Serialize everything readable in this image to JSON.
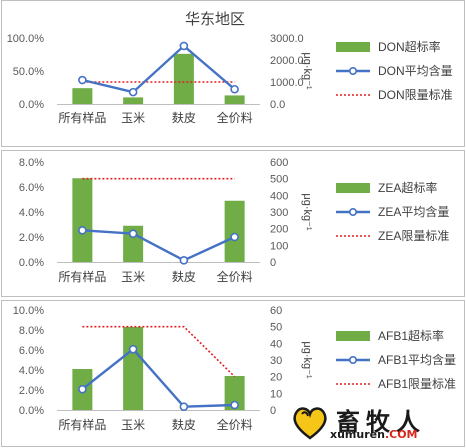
{
  "page_title": "华东地区",
  "chart_data": [
    {
      "type": "bar",
      "title": "华东地区",
      "categories": [
        "所有样品",
        "玉米",
        "麸皮",
        "全价料"
      ],
      "left_axis": {
        "ticks": [
          "0.0%",
          "50.0%",
          "100.0%"
        ],
        "ylim": [
          0,
          100
        ]
      },
      "right_axis": {
        "ticks": [
          "0.0",
          "1000.0",
          "2000.0",
          "3000.0"
        ],
        "ylim": [
          0,
          3000
        ],
        "label": "μg·kg⁻¹"
      },
      "series": [
        {
          "name": "DON超标率",
          "kind": "bar",
          "axis": "left",
          "values": [
            24,
            10,
            76,
            13
          ]
        },
        {
          "name": "DON平均含量",
          "kind": "line",
          "axis": "right",
          "values": [
            1090,
            540,
            2640,
            670
          ]
        },
        {
          "name": "DON限量标准",
          "kind": "dotted",
          "axis": "right",
          "values": [
            1000,
            1000,
            1000,
            1000
          ]
        }
      ],
      "legend_position": "right"
    },
    {
      "type": "bar",
      "title": "",
      "categories": [
        "所有样品",
        "玉米",
        "麸皮",
        "全价料"
      ],
      "left_axis": {
        "ticks": [
          "0.0%",
          "2.0%",
          "4.0%",
          "6.0%",
          "8.0%"
        ],
        "ylim": [
          0,
          8
        ]
      },
      "right_axis": {
        "ticks": [
          "0",
          "100",
          "200",
          "300",
          "400",
          "500",
          "600"
        ],
        "ylim": [
          0,
          600
        ],
        "label": "μg·kg⁻¹"
      },
      "series": [
        {
          "name": "ZEA超标率",
          "kind": "bar",
          "axis": "left",
          "values": [
            6.7,
            2.9,
            0,
            4.9
          ]
        },
        {
          "name": "ZEA平均含量",
          "kind": "line",
          "axis": "right",
          "values": [
            190,
            170,
            10,
            150
          ]
        },
        {
          "name": "ZEA限量标准",
          "kind": "dotted",
          "axis": "right",
          "values": [
            500,
            500,
            500,
            500
          ]
        }
      ],
      "legend_position": "right"
    },
    {
      "type": "bar",
      "title": "",
      "categories": [
        "所有样品",
        "玉米",
        "麸皮",
        "全价料"
      ],
      "left_axis": {
        "ticks": [
          "0.0%",
          "2.0%",
          "4.0%",
          "6.0%",
          "8.0%",
          "10.0%"
        ],
        "ylim": [
          0,
          10
        ]
      },
      "right_axis": {
        "ticks": [
          "0",
          "10",
          "20",
          "30",
          "40",
          "50",
          "60"
        ],
        "ylim": [
          0,
          60
        ],
        "label": "μg·kg⁻¹"
      },
      "series": [
        {
          "name": "AFB1超标率",
          "kind": "bar",
          "axis": "left",
          "values": [
            4.1,
            8.3,
            0,
            3.4
          ]
        },
        {
          "name": "AFB1平均含量",
          "kind": "line",
          "axis": "right",
          "values": [
            12.5,
            36.5,
            2,
            3
          ]
        },
        {
          "name": "AFB1限量标准",
          "kind": "dotted",
          "axis": "right",
          "values": [
            50,
            50,
            50,
            20
          ]
        }
      ],
      "legend_position": "right"
    }
  ],
  "colors": {
    "bar": "#70ad47",
    "line": "#4472c4",
    "limit": "#e02020",
    "border": "#bfbfbf"
  },
  "watermark": {
    "text": "畜牧人",
    "url_dark": "xumuren",
    "url_red": ".COM"
  }
}
